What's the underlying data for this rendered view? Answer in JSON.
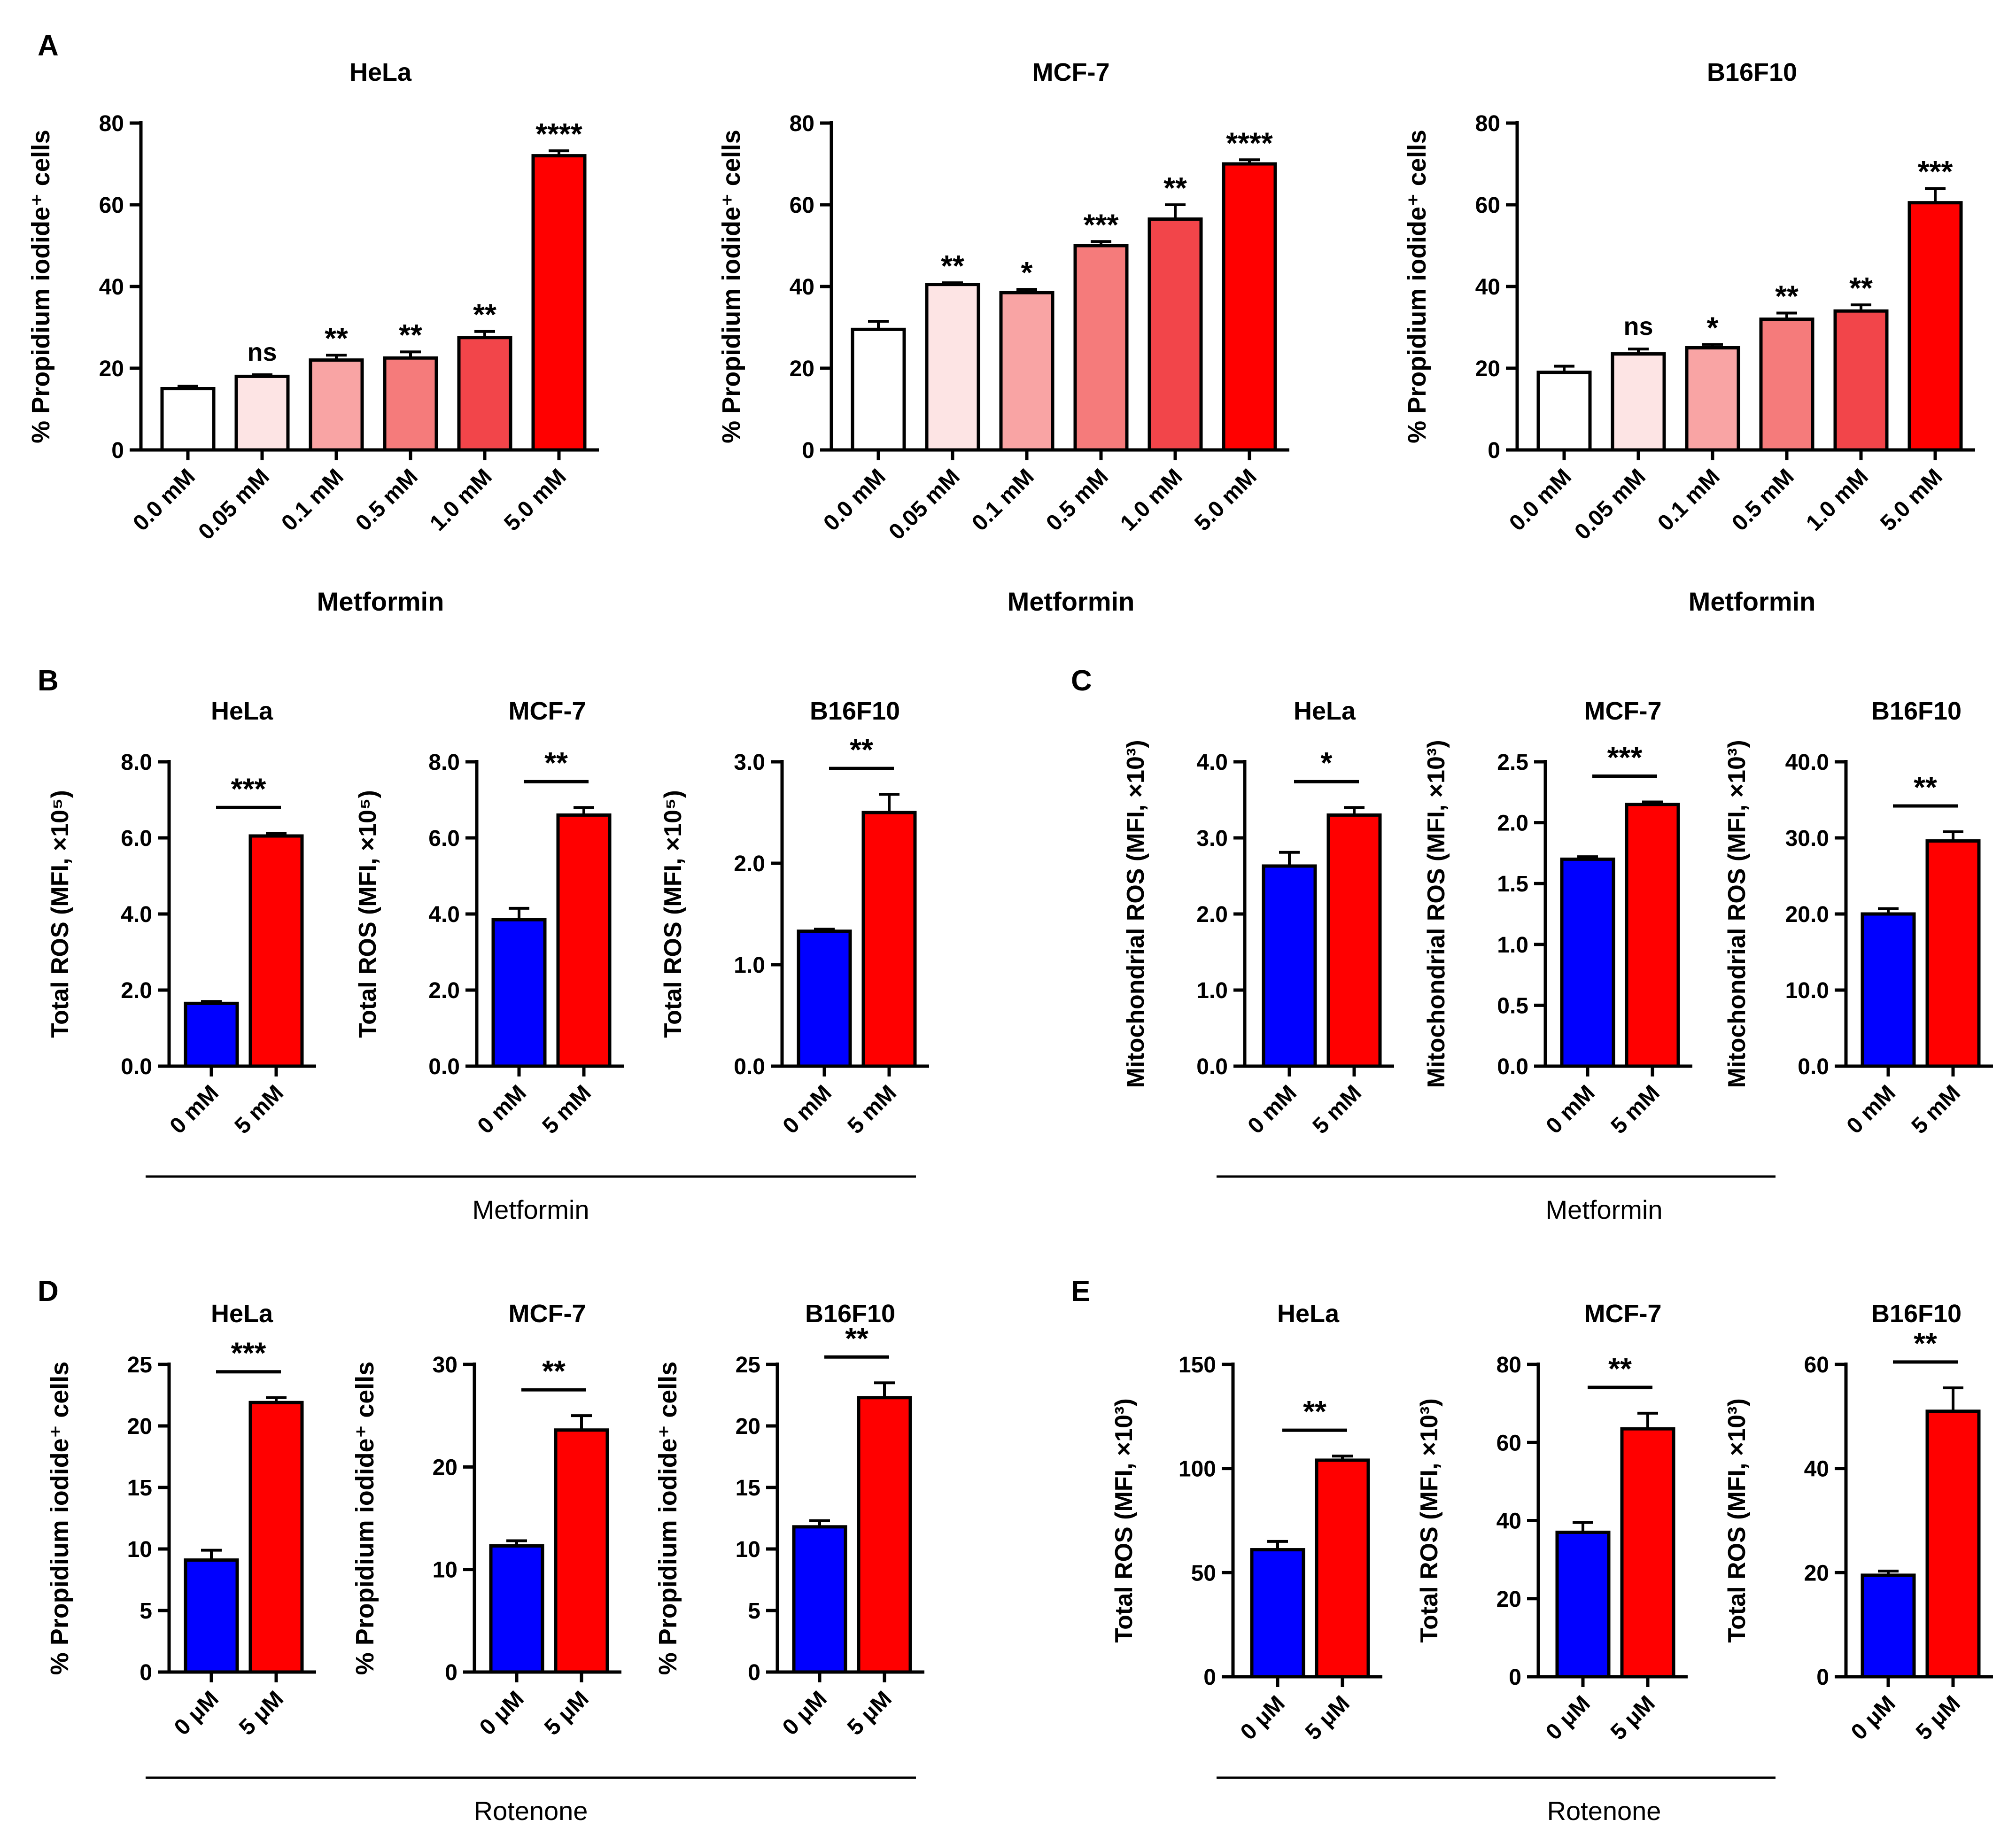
{
  "panels": {
    "A": "A",
    "B": "B",
    "C": "C",
    "D": "D",
    "E": "E"
  },
  "group_labels": {
    "BC": "Metformin",
    "DE": "Rotenone"
  },
  "chart_data": [
    {
      "id": "A1",
      "panel": "A",
      "type": "bar",
      "title": "HeLa",
      "ylabel": "% Propidium iodide⁺ cells",
      "xlabel": "Metformin",
      "categories": [
        "0.0 mM",
        "0.05 mM",
        "0.1 mM",
        "0.5 mM",
        "1.0 mM",
        "5.0 mM"
      ],
      "values": [
        15,
        18,
        22,
        22.5,
        27.5,
        72
      ],
      "errors": [
        0.6,
        0.4,
        1.2,
        1.5,
        1.5,
        1.2
      ],
      "significance": [
        "",
        "ns",
        "**",
        "**",
        "**",
        "****"
      ],
      "colors": [
        "#ffffff",
        "#fde4e4",
        "#f9a4a4",
        "#f57b7b",
        "#f2454a",
        "#ff0000"
      ],
      "ylim": [
        0,
        80
      ],
      "yticks": [
        "0",
        "20",
        "40",
        "60",
        "80"
      ]
    },
    {
      "id": "A2",
      "panel": "A",
      "type": "bar",
      "title": "MCF-7",
      "ylabel": "% Propidium iodide⁺ cells",
      "xlabel": "Metformin",
      "categories": [
        "0.0 mM",
        "0.05 mM",
        "0.1 mM",
        "0.5 mM",
        "1.0 mM",
        "5.0 mM"
      ],
      "values": [
        29.5,
        40.5,
        38.5,
        50,
        56.5,
        70
      ],
      "errors": [
        2,
        0.4,
        0.8,
        1,
        3.5,
        1
      ],
      "significance": [
        "",
        "**",
        "*",
        "***",
        "**",
        "****"
      ],
      "colors": [
        "#ffffff",
        "#fde4e4",
        "#f9a4a4",
        "#f57b7b",
        "#f2454a",
        "#ff0000"
      ],
      "ylim": [
        0,
        80
      ],
      "yticks": [
        "0",
        "20",
        "40",
        "60",
        "80"
      ]
    },
    {
      "id": "A3",
      "panel": "A",
      "type": "bar",
      "title": "B16F10",
      "ylabel": "% Propidium iodide⁺ cells",
      "xlabel": "Metformin",
      "categories": [
        "0.0 mM",
        "0.05 mM",
        "0.1 mM",
        "0.5 mM",
        "1.0 mM",
        "5.0 mM"
      ],
      "values": [
        19,
        23.5,
        25,
        32,
        34,
        60.5
      ],
      "errors": [
        1.5,
        1.2,
        0.8,
        1.5,
        1.5,
        3.5
      ],
      "significance": [
        "",
        "ns",
        "*",
        "**",
        "**",
        "***"
      ],
      "colors": [
        "#ffffff",
        "#fde4e4",
        "#f9a4a4",
        "#f57b7b",
        "#f2454a",
        "#ff0000"
      ],
      "ylim": [
        0,
        80
      ],
      "yticks": [
        "0",
        "20",
        "40",
        "60",
        "80"
      ]
    },
    {
      "id": "B1",
      "panel": "B",
      "type": "bar",
      "title": "HeLa",
      "ylabel": "Total ROS (MFI, ×10⁵)",
      "categories": [
        "0 mM",
        "5 mM"
      ],
      "values": [
        1.65,
        6.05
      ],
      "errors": [
        0.05,
        0.07
      ],
      "significance": "***",
      "colors": [
        "#0000ff",
        "#ff0000"
      ],
      "ylim": [
        0,
        8
      ],
      "yticks": [
        "0.0",
        "2.0",
        "4.0",
        "6.0",
        "8.0"
      ]
    },
    {
      "id": "B2",
      "panel": "B",
      "type": "bar",
      "title": "MCF-7",
      "ylabel": "Total ROS (MFI, ×10⁵)",
      "categories": [
        "0 mM",
        "5 mM"
      ],
      "values": [
        3.85,
        6.6
      ],
      "errors": [
        0.3,
        0.2
      ],
      "significance": "**",
      "colors": [
        "#0000ff",
        "#ff0000"
      ],
      "ylim": [
        0,
        8
      ],
      "yticks": [
        "0.0",
        "2.0",
        "4.0",
        "6.0",
        "8.0"
      ]
    },
    {
      "id": "B3",
      "panel": "B",
      "type": "bar",
      "title": "B16F10",
      "ylabel": "Total ROS (MFI, ×10⁵)",
      "categories": [
        "0 mM",
        "5 mM"
      ],
      "values": [
        1.33,
        2.5
      ],
      "errors": [
        0.02,
        0.18
      ],
      "significance": "**",
      "colors": [
        "#0000ff",
        "#ff0000"
      ],
      "ylim": [
        0,
        3
      ],
      "yticks": [
        "0.0",
        "1.0",
        "2.0",
        "3.0"
      ]
    },
    {
      "id": "C1",
      "panel": "C",
      "type": "bar",
      "title": "HeLa",
      "ylabel": "Mitochondrial ROS (MFI, ×10³)",
      "categories": [
        "0 mM",
        "5 mM"
      ],
      "values": [
        2.63,
        3.3
      ],
      "errors": [
        0.18,
        0.1
      ],
      "significance": "*",
      "colors": [
        "#0000ff",
        "#ff0000"
      ],
      "ylim": [
        0,
        4
      ],
      "yticks": [
        "0.0",
        "1.0",
        "2.0",
        "3.0",
        "4.0"
      ]
    },
    {
      "id": "C2",
      "panel": "C",
      "type": "bar",
      "title": "MCF-7",
      "ylabel": "Mitochondrial ROS (MFI, ×10³)",
      "categories": [
        "0 mM",
        "5 mM"
      ],
      "values": [
        1.7,
        2.15
      ],
      "errors": [
        0.02,
        0.02
      ],
      "significance": "***",
      "colors": [
        "#0000ff",
        "#ff0000"
      ],
      "ylim": [
        0,
        2.5
      ],
      "yticks": [
        "0.0",
        "0.5",
        "1.0",
        "1.5",
        "2.0",
        "2.5"
      ]
    },
    {
      "id": "C3",
      "panel": "C",
      "type": "bar",
      "title": "B16F10",
      "ylabel": "Mitochondrial ROS (MFI, ×10³)",
      "categories": [
        "0 mM",
        "5 mM"
      ],
      "values": [
        20,
        29.6
      ],
      "errors": [
        0.7,
        1.2
      ],
      "significance": "**",
      "colors": [
        "#0000ff",
        "#ff0000"
      ],
      "ylim": [
        0,
        40
      ],
      "yticks": [
        "0.0",
        "10.0",
        "20.0",
        "30.0",
        "40.0"
      ]
    },
    {
      "id": "D1",
      "panel": "D",
      "type": "bar",
      "title": "HeLa",
      "ylabel": "% Propidium iodide⁺ cells",
      "categories": [
        "0 μM",
        "5 μM"
      ],
      "values": [
        9.1,
        21.9
      ],
      "errors": [
        0.8,
        0.4
      ],
      "significance": "***",
      "colors": [
        "#0000ff",
        "#ff0000"
      ],
      "ylim": [
        0,
        25
      ],
      "yticks": [
        "0",
        "5",
        "10",
        "15",
        "20",
        "25"
      ]
    },
    {
      "id": "D2",
      "panel": "D",
      "type": "bar",
      "title": "MCF-7",
      "ylabel": "% Propidium iodide⁺ cells",
      "categories": [
        "0 μM",
        "5 μM"
      ],
      "values": [
        12.3,
        23.6
      ],
      "errors": [
        0.5,
        1.4
      ],
      "significance": "**",
      "colors": [
        "#0000ff",
        "#ff0000"
      ],
      "ylim": [
        0,
        30
      ],
      "yticks": [
        "0",
        "10",
        "20",
        "30"
      ]
    },
    {
      "id": "D3",
      "panel": "D",
      "type": "bar",
      "title": "B16F10",
      "ylabel": "% Propidium iodide⁺ cells",
      "categories": [
        "0 μM",
        "5 μM"
      ],
      "values": [
        11.8,
        22.3
      ],
      "errors": [
        0.5,
        1.2
      ],
      "significance": "**",
      "colors": [
        "#0000ff",
        "#ff0000"
      ],
      "ylim": [
        0,
        25
      ],
      "yticks": [
        "0",
        "5",
        "10",
        "15",
        "20",
        "25"
      ]
    },
    {
      "id": "E1",
      "panel": "E",
      "type": "bar",
      "title": "HeLa",
      "ylabel": "Total ROS (MFI, ×10³)",
      "categories": [
        "0 μM",
        "5 μM"
      ],
      "values": [
        61,
        104
      ],
      "errors": [
        4,
        2
      ],
      "significance": "**",
      "colors": [
        "#0000ff",
        "#ff0000"
      ],
      "ylim": [
        0,
        150
      ],
      "yticks": [
        "0",
        "50",
        "100",
        "150"
      ]
    },
    {
      "id": "E2",
      "panel": "E",
      "type": "bar",
      "title": "MCF-7",
      "ylabel": "Total ROS (MFI, ×10³)",
      "categories": [
        "0 μM",
        "5 μM"
      ],
      "values": [
        37,
        63.5
      ],
      "errors": [
        2.5,
        4
      ],
      "significance": "**",
      "colors": [
        "#0000ff",
        "#ff0000"
      ],
      "ylim": [
        0,
        80
      ],
      "yticks": [
        "0",
        "20",
        "40",
        "60",
        "80"
      ]
    },
    {
      "id": "E3",
      "panel": "E",
      "type": "bar",
      "title": "B16F10",
      "ylabel": "Total ROS (MFI, ×10³)",
      "categories": [
        "0 μM",
        "5 μM"
      ],
      "values": [
        19.5,
        51
      ],
      "errors": [
        0.8,
        4.5
      ],
      "significance": "**",
      "colors": [
        "#0000ff",
        "#ff0000"
      ],
      "ylim": [
        0,
        60
      ],
      "yticks": [
        "0",
        "20",
        "40",
        "60"
      ]
    }
  ]
}
